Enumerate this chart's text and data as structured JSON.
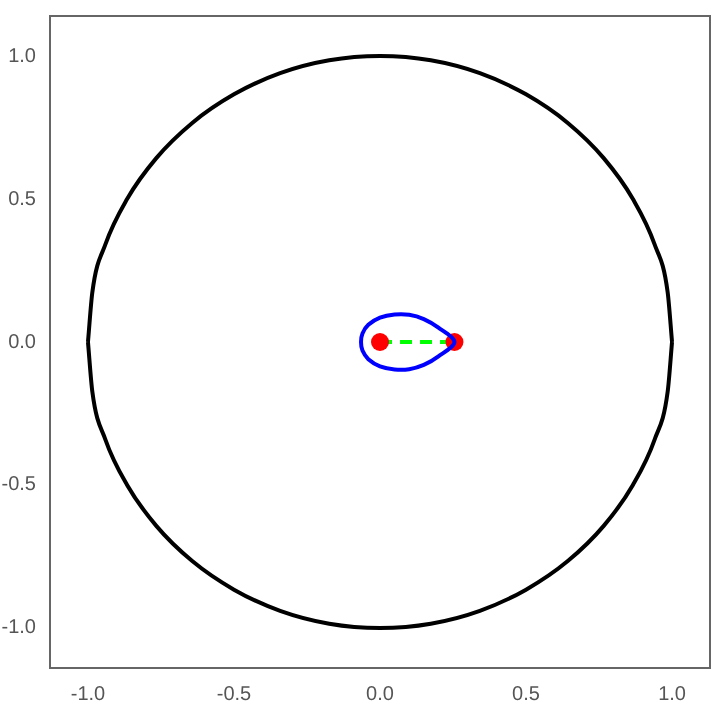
{
  "chart_data": {
    "type": "line",
    "xlim": [
      -1.13,
      1.13
    ],
    "ylim": [
      -1.14,
      1.14
    ],
    "xticks": [
      {
        "value": -1,
        "label": "-1.0"
      },
      {
        "value": -0.5,
        "label": "-0.5"
      },
      {
        "value": 0,
        "label": "0.0"
      },
      {
        "value": 0.5,
        "label": "0.5"
      },
      {
        "value": 1,
        "label": "1.0"
      }
    ],
    "yticks": [
      {
        "value": -1,
        "label": "-1.0"
      },
      {
        "value": -0.5,
        "label": "-0.5"
      },
      {
        "value": 0,
        "label": "0.0"
      },
      {
        "value": 0.5,
        "label": "0.5"
      },
      {
        "value": 1,
        "label": "1.0"
      }
    ],
    "grid": false,
    "legend": false,
    "series": [
      {
        "color": "#000000",
        "marker": "none",
        "line_style": "solid",
        "x": [
          -1,
          -0.985,
          -0.94,
          -0.866,
          -0.766,
          -0.643,
          -0.5,
          -0.342,
          -0.174,
          0,
          0.174,
          0.342,
          0.5,
          0.643,
          0.766,
          0.866,
          0.94,
          0.985,
          1
        ],
        "values": [
          0,
          0.174,
          0.342,
          0.5,
          0.643,
          0.766,
          0.866,
          0.94,
          0.985,
          1,
          0.985,
          0.94,
          0.866,
          0.766,
          0.643,
          0.5,
          0.342,
          0.174,
          0
        ]
      },
      {
        "color": "#000000",
        "marker": "none",
        "line_style": "solid",
        "x": [
          -1,
          -0.985,
          -0.94,
          -0.866,
          -0.766,
          -0.643,
          -0.5,
          -0.342,
          -0.174,
          0,
          0.174,
          0.342,
          0.5,
          0.643,
          0.766,
          0.866,
          0.94,
          0.985,
          1
        ],
        "values": [
          0,
          -0.174,
          -0.342,
          -0.5,
          -0.643,
          -0.766,
          -0.866,
          -0.94,
          -0.985,
          -1,
          -0.985,
          -0.94,
          -0.866,
          -0.766,
          -0.643,
          -0.5,
          -0.342,
          -0.174,
          0
        ]
      },
      {
        "color": "#00ff00",
        "marker": "none",
        "line_style": "dashed",
        "x": [
          0,
          0.255
        ],
        "values": [
          0,
          0
        ]
      },
      {
        "type": "scatter",
        "color": "#ff0000",
        "marker": "circle",
        "x": [
          0,
          0.255
        ],
        "values": [
          0,
          0
        ]
      }
    ]
  }
}
